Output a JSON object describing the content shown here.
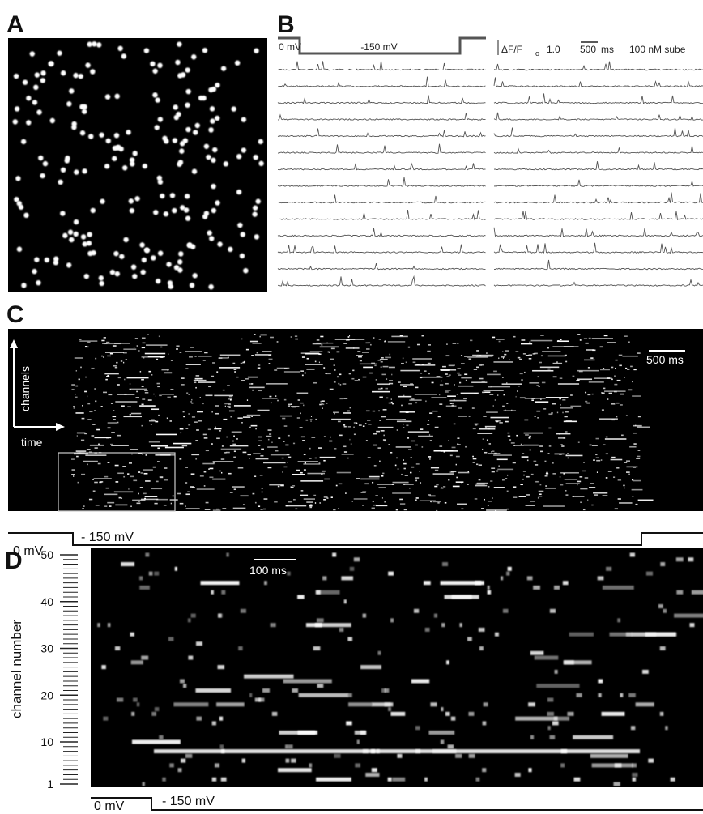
{
  "panel_a": {
    "label": "A"
  },
  "panel_b": {
    "label": "B",
    "protocol": {
      "holding": "0 mV",
      "step": "-150 mV"
    },
    "scale": {
      "delta": "ΔF/F",
      "subscript": "o",
      "amplitude": "1.0",
      "time": "500",
      "time_unit": "ms",
      "condition": "100 nM sube"
    }
  },
  "panel_c": {
    "label": "C",
    "y_axis": "channels",
    "x_axis": "time",
    "scale_bar": "500 ms",
    "protocol": {
      "holding": "0 mV",
      "step": "- 150 mV"
    }
  },
  "panel_d": {
    "label": "D",
    "y_axis": "channel number",
    "yticks": [
      1,
      10,
      20,
      30,
      40,
      50
    ],
    "scale_bar": "100 ms",
    "protocol": {
      "holding": "0 mV",
      "step": "- 150 mV"
    }
  }
}
